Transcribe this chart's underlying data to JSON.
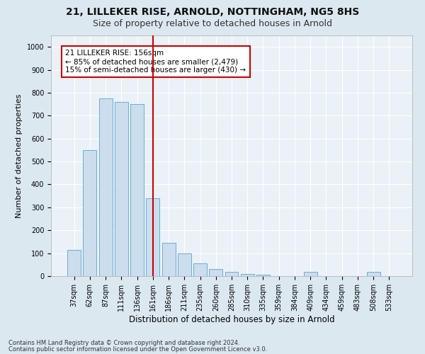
{
  "title1": "21, LILLEKER RISE, ARNOLD, NOTTINGHAM, NG5 8HS",
  "title2": "Size of property relative to detached houses in Arnold",
  "xlabel": "Distribution of detached houses by size in Arnold",
  "ylabel": "Number of detached properties",
  "categories": [
    "37sqm",
    "62sqm",
    "87sqm",
    "111sqm",
    "136sqm",
    "161sqm",
    "186sqm",
    "211sqm",
    "235sqm",
    "260sqm",
    "285sqm",
    "310sqm",
    "335sqm",
    "359sqm",
    "384sqm",
    "409sqm",
    "434sqm",
    "459sqm",
    "483sqm",
    "508sqm",
    "533sqm"
  ],
  "values": [
    115,
    550,
    775,
    760,
    750,
    340,
    145,
    100,
    55,
    30,
    20,
    10,
    5,
    0,
    0,
    20,
    0,
    0,
    0,
    20,
    0
  ],
  "bar_color": "#ccdded",
  "bar_edge_color": "#6aadd5",
  "vline_x": 5,
  "vline_color": "#cc0000",
  "annotation_text": "21 LILLEKER RISE: 156sqm\n← 85% of detached houses are smaller (2,479)\n15% of semi-detached houses are larger (430) →",
  "annotation_box_color": "#ffffff",
  "annotation_box_edge": "#cc0000",
  "ylim": [
    0,
    1050
  ],
  "yticks": [
    0,
    100,
    200,
    300,
    400,
    500,
    600,
    700,
    800,
    900,
    1000
  ],
  "footer1": "Contains HM Land Registry data © Crown copyright and database right 2024.",
  "footer2": "Contains public sector information licensed under the Open Government Licence v3.0.",
  "bg_color": "#dce8f0",
  "plot_bg_color": "#eaf1f7",
  "grid_color": "#ffffff",
  "title1_fontsize": 10,
  "title2_fontsize": 9,
  "ylabel_fontsize": 8,
  "xlabel_fontsize": 8.5,
  "tick_fontsize": 7,
  "annot_fontsize": 7.5,
  "footer_fontsize": 6
}
